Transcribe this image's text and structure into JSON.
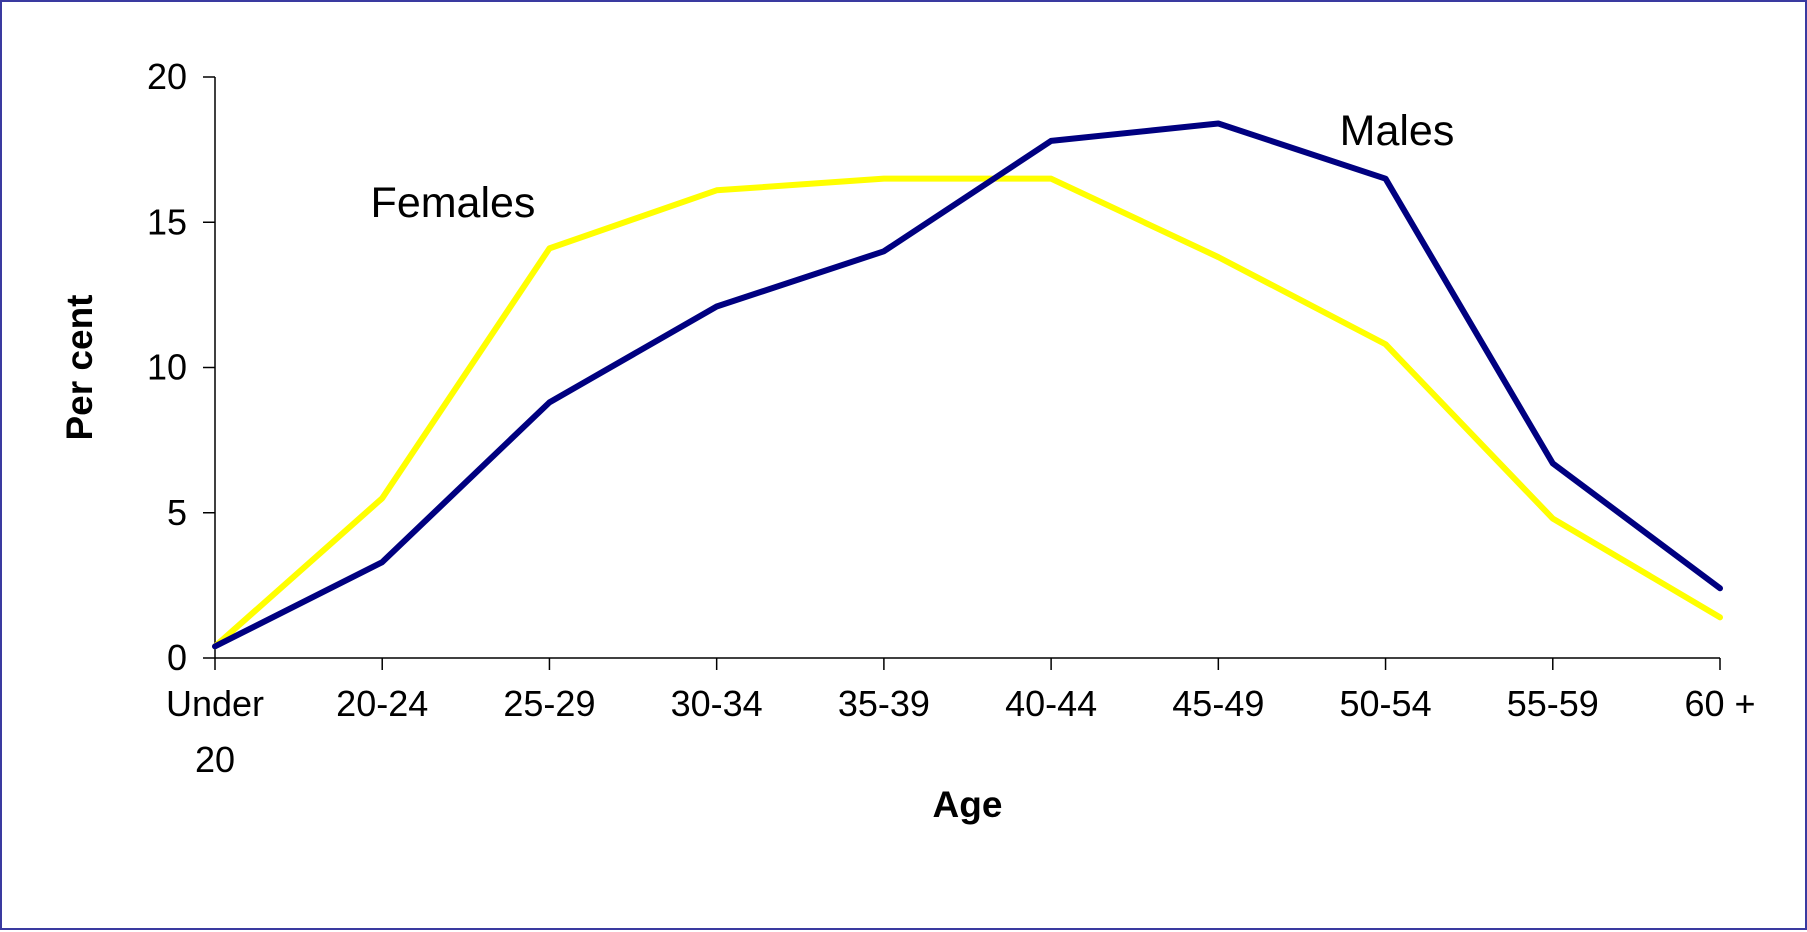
{
  "chart_data": {
    "type": "line",
    "title": "",
    "xlabel": "Age",
    "ylabel": "Per cent",
    "categories": [
      "Under 20",
      "20-24",
      "25-29",
      "30-34",
      "35-39",
      "40-44",
      "45-49",
      "50-54",
      "55-59",
      "60 +"
    ],
    "category_lines": [
      [
        "Under",
        "20"
      ],
      [
        "20-24"
      ],
      [
        "25-29"
      ],
      [
        "30-34"
      ],
      [
        "35-39"
      ],
      [
        "40-44"
      ],
      [
        "45-49"
      ],
      [
        "50-54"
      ],
      [
        "55-59"
      ],
      [
        "60 +"
      ]
    ],
    "ylim": [
      0,
      20
    ],
    "yticks": [
      0,
      5,
      10,
      15,
      20
    ],
    "grid": false,
    "legend": "none (series labeled directly on plot)",
    "series": [
      {
        "name": "Males",
        "color": "#000080",
        "values": [
          0.4,
          3.3,
          8.8,
          12.1,
          14.0,
          17.8,
          18.4,
          16.5,
          6.7,
          2.4
        ]
      },
      {
        "name": "Females",
        "color": "#ffff00",
        "values": [
          0.4,
          5.5,
          14.1,
          16.1,
          16.5,
          16.5,
          13.8,
          10.8,
          4.8,
          1.4
        ]
      }
    ]
  }
}
